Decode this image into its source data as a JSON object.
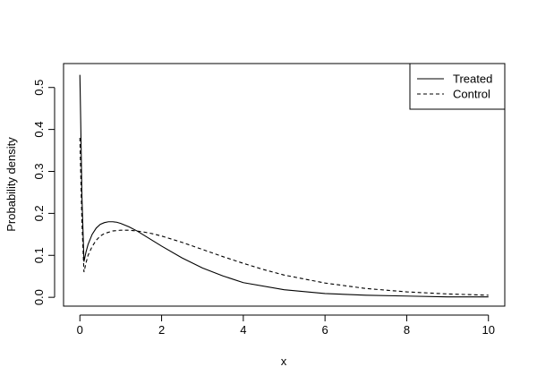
{
  "chart_data": {
    "type": "line",
    "title": "",
    "xlabel": "x",
    "ylabel": "Probability density",
    "xlim": [
      -0.4,
      10.4
    ],
    "ylim": [
      -0.021,
      0.557
    ],
    "xticks": [
      0,
      2,
      4,
      6,
      8,
      10
    ],
    "yticks": [
      0.0,
      0.1,
      0.2,
      0.3,
      0.4,
      0.5
    ],
    "ytick_labels": [
      "0.0",
      "0.1",
      "0.2",
      "0.3",
      "0.4",
      "0.5"
    ],
    "grid": false,
    "legend_position": "top-right",
    "series": [
      {
        "name": "Treated",
        "line_style": "solid",
        "color": "#000000",
        "x": [
          0.0,
          0.02,
          0.05,
          0.1,
          0.15,
          0.2,
          0.3,
          0.4,
          0.5,
          0.6,
          0.7,
          0.8,
          0.9,
          1.0,
          1.2,
          1.4,
          1.6,
          1.8,
          2.0,
          2.5,
          3.0,
          3.5,
          4.0,
          5.0,
          6.0,
          7.0,
          8.0,
          9.0,
          10.0
        ],
        "y": [
          0.53,
          0.42,
          0.24,
          0.085,
          0.108,
          0.126,
          0.15,
          0.165,
          0.174,
          0.178,
          0.18,
          0.18,
          0.179,
          0.176,
          0.168,
          0.158,
          0.146,
          0.134,
          0.122,
          0.094,
          0.07,
          0.051,
          0.035,
          0.018,
          0.009,
          0.005,
          0.003,
          0.001,
          0.001
        ]
      },
      {
        "name": "Control",
        "line_style": "dashed",
        "color": "#000000",
        "x": [
          0.0,
          0.02,
          0.05,
          0.1,
          0.15,
          0.2,
          0.3,
          0.4,
          0.5,
          0.6,
          0.8,
          1.0,
          1.2,
          1.4,
          1.6,
          1.8,
          2.0,
          2.5,
          3.0,
          3.5,
          4.0,
          4.5,
          5.0,
          6.0,
          7.0,
          8.0,
          9.0,
          10.0
        ],
        "y": [
          0.38,
          0.3,
          0.18,
          0.06,
          0.082,
          0.1,
          0.121,
          0.136,
          0.146,
          0.152,
          0.158,
          0.16,
          0.16,
          0.158,
          0.155,
          0.151,
          0.146,
          0.131,
          0.114,
          0.097,
          0.081,
          0.066,
          0.053,
          0.034,
          0.021,
          0.013,
          0.008,
          0.005
        ]
      }
    ]
  }
}
